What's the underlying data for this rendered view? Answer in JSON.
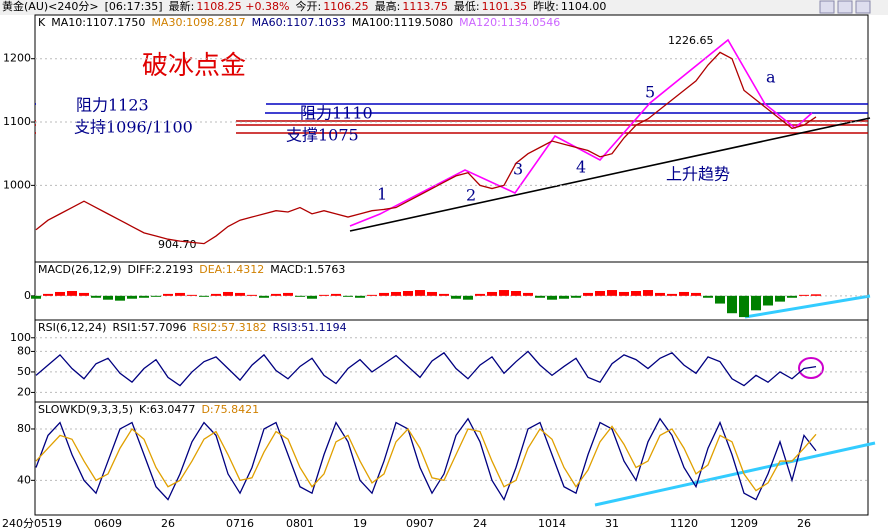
{
  "header": {
    "symbol": "黄金(AU)<240分>",
    "time": "[06:17:35]",
    "quotes": [
      {
        "label": "最新:",
        "value": "1108.25 +0.38%"
      },
      {
        "label": "今开:",
        "value": "1106.25"
      },
      {
        "label": "最高:",
        "value": "1113.75"
      },
      {
        "label": "最低:",
        "value": "1101.35"
      },
      {
        "label": "昨收:",
        "value": "1104.00"
      }
    ]
  },
  "chart_data": [
    {
      "type": "line",
      "xlabel": "240分",
      "indicators": [
        {
          "text": "K",
          "color": "#000000"
        },
        {
          "text": "MA10:1107.1750",
          "color": "#000000"
        },
        {
          "text": "MA30:1098.2817",
          "color": "#d08000"
        },
        {
          "text": "MA60:1107.1033",
          "color": "#000080"
        },
        {
          "text": "MA100:1119.5080",
          "color": "#000000"
        },
        {
          "text": "MA120:1134.0546",
          "color": "#cc66ff"
        }
      ],
      "annotations": {
        "title": "破冰点金",
        "resistance_1": "阻力1123",
        "resistance_2": "阻力1110",
        "support_1": "支持1096/1100",
        "support_2": "支撑1075",
        "trend": "上升趋势",
        "high": "1226.65",
        "low": "904.70",
        "waves": [
          "1",
          "2",
          "3",
          "4",
          "5",
          "a"
        ]
      },
      "categories": [
        null,
        "0519",
        null,
        null,
        null,
        null,
        "0609",
        null,
        null,
        null,
        null,
        "26",
        null,
        null,
        null,
        null,
        null,
        "0716",
        null,
        null,
        null,
        null,
        "0801",
        null,
        null,
        null,
        null,
        "19",
        null,
        null,
        null,
        null,
        "0907",
        null,
        null,
        null,
        null,
        "24",
        null,
        null,
        null,
        null,
        null,
        "1014",
        null,
        null,
        null,
        null,
        "31",
        null,
        null,
        null,
        null,
        null,
        "1120",
        null,
        null,
        null,
        null,
        "1209",
        null,
        null,
        null,
        null,
        "26",
        null
      ],
      "series": [
        {
          "color": "#b00000",
          "values": [
            930,
            945,
            955,
            965,
            975,
            965,
            955,
            945,
            935,
            925,
            920,
            915,
            912,
            910,
            908,
            920,
            935,
            945,
            950,
            955,
            960,
            958,
            965,
            955,
            960,
            955,
            950,
            955,
            960,
            962,
            965,
            975,
            985,
            995,
            1005,
            1015,
            1020,
            1000,
            995,
            1000,
            1035,
            1050,
            1060,
            1070,
            1065,
            1060,
            1055,
            1045,
            1050,
            1075,
            1095,
            1105,
            1120,
            1135,
            1150,
            1165,
            1190,
            1210,
            1200,
            1150,
            1135,
            1120,
            1105,
            1090,
            1095,
            1108
          ]
        }
      ],
      "ylim": [
        879,
        1269
      ],
      "yticks": [
        1000,
        1100,
        1200
      ]
    },
    {
      "type": "bar",
      "indicators": [
        {
          "text": "MACD(26,12,9)",
          "color": "#000000"
        },
        {
          "text": "DIFF:2.2193",
          "color": "#000000"
        },
        {
          "text": "DEA:1.4312",
          "color": "#d08000"
        },
        {
          "text": "MACD:1.5763",
          "color": "#000000"
        }
      ],
      "up_color": "#ff0000",
      "down_color": "#008000",
      "values": [
        -3,
        2,
        4,
        5,
        3,
        -2,
        -4,
        -5,
        -3,
        -2,
        -1,
        2,
        3,
        1,
        -1,
        2,
        4,
        3,
        1,
        -2,
        2,
        3,
        -1,
        -3,
        1,
        2,
        -1,
        -2,
        1,
        3,
        4,
        5,
        6,
        4,
        2,
        -3,
        -4,
        2,
        4,
        6,
        5,
        3,
        -2,
        -4,
        -3,
        -2,
        3,
        5,
        6,
        4,
        5,
        6,
        3,
        2,
        4,
        3,
        -2,
        -8,
        -18,
        -22,
        -15,
        -10,
        -6,
        -2,
        1,
        1.5763
      ],
      "ylim": [
        -25,
        35
      ],
      "yticks": [
        0
      ]
    },
    {
      "type": "line",
      "indicators": [
        {
          "text": "RSI(6,12,24)",
          "color": "#000000"
        },
        {
          "text": "RSI1:57.7096",
          "color": "#000000"
        },
        {
          "text": "RSI2:57.3182",
          "color": "#d08000"
        },
        {
          "text": "RSI3:51.1194",
          "color": "#000080"
        }
      ],
      "series": [
        {
          "color": "#000080",
          "values": [
            45,
            60,
            75,
            55,
            40,
            62,
            70,
            48,
            35,
            55,
            68,
            42,
            30,
            50,
            65,
            72,
            55,
            38,
            60,
            75,
            52,
            40,
            58,
            70,
            45,
            33,
            55,
            68,
            50,
            62,
            74,
            58,
            42,
            66,
            78,
            55,
            40,
            60,
            72,
            48,
            65,
            80,
            60,
            45,
            58,
            70,
            42,
            35,
            62,
            75,
            68,
            55,
            70,
            78,
            60,
            48,
            72,
            65,
            40,
            30,
            45,
            35,
            50,
            40,
            55,
            57.7096
          ]
        }
      ],
      "ylim": [
        6,
        126
      ],
      "yticks": [
        20,
        50,
        80,
        100
      ]
    },
    {
      "type": "line",
      "indicators": [
        {
          "text": "SLOWKD(9,3,3,5)",
          "color": "#000000"
        },
        {
          "text": "K:63.0477",
          "color": "#000000"
        },
        {
          "text": "D:75.8421",
          "color": "#d08000"
        }
      ],
      "series": [
        {
          "color": "#000080",
          "values": [
            50,
            75,
            85,
            60,
            40,
            30,
            55,
            80,
            85,
            60,
            35,
            25,
            45,
            70,
            85,
            75,
            45,
            30,
            50,
            80,
            85,
            60,
            35,
            30,
            60,
            85,
            70,
            40,
            30,
            55,
            85,
            80,
            50,
            30,
            45,
            75,
            88,
            70,
            40,
            25,
            50,
            80,
            85,
            60,
            35,
            30,
            60,
            85,
            80,
            55,
            40,
            70,
            88,
            75,
            50,
            35,
            65,
            85,
            60,
            30,
            25,
            45,
            70,
            40,
            75,
            63.0477
          ]
        },
        {
          "color": "#e0a000",
          "values": [
            55,
            65,
            75,
            72,
            55,
            40,
            45,
            65,
            80,
            72,
            50,
            35,
            40,
            55,
            72,
            78,
            60,
            40,
            42,
            62,
            78,
            72,
            50,
            35,
            45,
            70,
            75,
            55,
            38,
            45,
            70,
            80,
            65,
            42,
            40,
            60,
            80,
            78,
            55,
            35,
            40,
            65,
            80,
            72,
            50,
            35,
            48,
            70,
            82,
            68,
            50,
            55,
            75,
            80,
            65,
            45,
            52,
            75,
            70,
            45,
            32,
            38,
            55,
            55,
            65,
            75.8421
          ]
        }
      ],
      "ylim": [
        13,
        101
      ],
      "yticks": [
        40,
        80
      ]
    }
  ]
}
